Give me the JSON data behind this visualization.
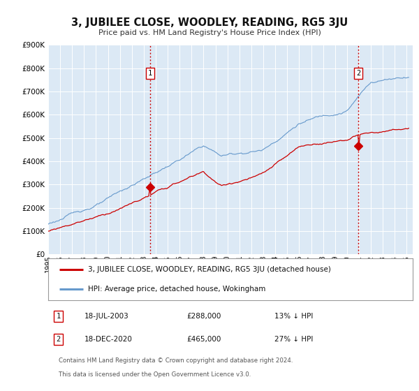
{
  "title": "3, JUBILEE CLOSE, WOODLEY, READING, RG5 3JU",
  "subtitle": "Price paid vs. HM Land Registry's House Price Index (HPI)",
  "ylim": [
    0,
    900000
  ],
  "yticks": [
    0,
    100000,
    200000,
    300000,
    400000,
    500000,
    600000,
    700000,
    800000,
    900000
  ],
  "ytick_labels": [
    "£0",
    "£100K",
    "£200K",
    "£300K",
    "£400K",
    "£500K",
    "£600K",
    "£700K",
    "£800K",
    "£900K"
  ],
  "xlim_start": 1995.0,
  "xlim_end": 2025.5,
  "xticks": [
    1995,
    1996,
    1997,
    1998,
    1999,
    2000,
    2001,
    2002,
    2003,
    2004,
    2005,
    2006,
    2007,
    2008,
    2009,
    2010,
    2011,
    2012,
    2013,
    2014,
    2015,
    2016,
    2017,
    2018,
    2019,
    2020,
    2021,
    2022,
    2023,
    2024,
    2025
  ],
  "plot_bg_color": "#dce9f5",
  "fig_bg_color": "#ffffff",
  "sale1_x": 2003.54,
  "sale1_y": 288000,
  "sale1_label": "1",
  "sale1_date": "18-JUL-2003",
  "sale1_price": "£288,000",
  "sale1_hpi": "13% ↓ HPI",
  "sale2_x": 2020.96,
  "sale2_y": 465000,
  "sale2_label": "2",
  "sale2_date": "18-DEC-2020",
  "sale2_price": "£465,000",
  "sale2_hpi": "27% ↓ HPI",
  "red_line_color": "#cc0000",
  "blue_line_color": "#6699cc",
  "marker_color": "#cc0000",
  "legend_label_red": "3, JUBILEE CLOSE, WOODLEY, READING, RG5 3JU (detached house)",
  "legend_label_blue": "HPI: Average price, detached house, Wokingham",
  "footer_line1": "Contains HM Land Registry data © Crown copyright and database right 2024.",
  "footer_line2": "This data is licensed under the Open Government Licence v3.0."
}
